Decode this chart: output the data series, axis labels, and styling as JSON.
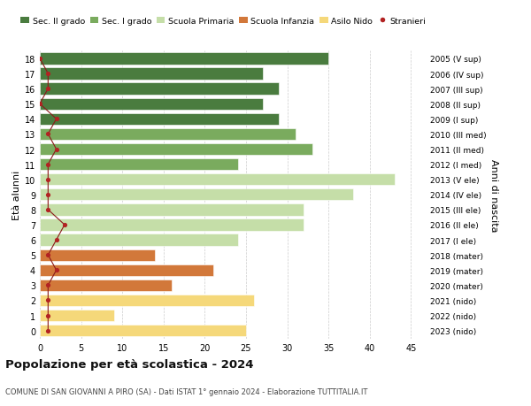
{
  "ages": [
    18,
    17,
    16,
    15,
    14,
    13,
    12,
    11,
    10,
    9,
    8,
    7,
    6,
    5,
    4,
    3,
    2,
    1,
    0
  ],
  "labels_right": [
    "2005 (V sup)",
    "2006 (IV sup)",
    "2007 (III sup)",
    "2008 (II sup)",
    "2009 (I sup)",
    "2010 (III med)",
    "2011 (II med)",
    "2012 (I med)",
    "2013 (V ele)",
    "2014 (IV ele)",
    "2015 (III ele)",
    "2016 (II ele)",
    "2017 (I ele)",
    "2018 (mater)",
    "2019 (mater)",
    "2020 (mater)",
    "2021 (nido)",
    "2022 (nido)",
    "2023 (nido)"
  ],
  "bar_values": [
    35,
    27,
    29,
    27,
    29,
    31,
    33,
    24,
    43,
    38,
    32,
    32,
    24,
    14,
    21,
    16,
    26,
    9,
    25
  ],
  "bar_colors": [
    "#4a7c3f",
    "#4a7c3f",
    "#4a7c3f",
    "#4a7c3f",
    "#4a7c3f",
    "#7aab5e",
    "#7aab5e",
    "#7aab5e",
    "#c5dea8",
    "#c5dea8",
    "#c5dea8",
    "#c5dea8",
    "#c5dea8",
    "#d2783a",
    "#d2783a",
    "#d2783a",
    "#f5d87a",
    "#f5d87a",
    "#f5d87a"
  ],
  "stranieri_values": [
    0,
    1,
    1,
    0,
    2,
    1,
    2,
    1,
    1,
    1,
    1,
    3,
    2,
    1,
    2,
    1,
    1,
    1,
    1
  ],
  "legend_labels": [
    "Sec. II grado",
    "Sec. I grado",
    "Scuola Primaria",
    "Scuola Infanzia",
    "Asilo Nido",
    "Stranieri"
  ],
  "legend_colors": [
    "#4a7c3f",
    "#7aab5e",
    "#c5dea8",
    "#d2783a",
    "#f5d87a",
    "#b22222"
  ],
  "xlabel_vals": [
    0,
    5,
    10,
    15,
    20,
    25,
    30,
    35,
    40,
    45
  ],
  "xlim": [
    0,
    47
  ],
  "ylim": [
    -0.55,
    18.55
  ],
  "ylabel": "Età alunni",
  "ylabel_right": "Anni di nascita",
  "title": "Popolazione per età scolastica - 2024",
  "subtitle": "COMUNE DI SAN GIOVANNI A PIRO (SA) - Dati ISTAT 1° gennaio 2024 - Elaborazione TUTTITALIA.IT",
  "bar_height": 0.78,
  "background_color": "#ffffff",
  "grid_color": "#cccccc"
}
